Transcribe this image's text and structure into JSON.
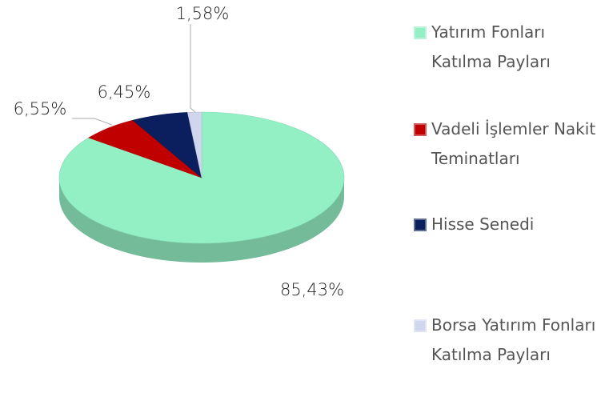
{
  "chart_data": {
    "type": "pie",
    "categories": [
      "Yatırım Fonları Katılma Payları",
      "Vadeli İşlemler Nakit Teminatları",
      "Hisse Senedi",
      "Borsa Yatırım Fonları Katılma Payları"
    ],
    "values": [
      85.43,
      6.55,
      6.45,
      1.58
    ],
    "value_labels": [
      "85,43%",
      "6,55%",
      "6,45%",
      "1,58%"
    ],
    "colors": [
      "#93f0c4",
      "#c00000",
      "#0b1f5e",
      "#cfd6ee"
    ],
    "legend": "right"
  }
}
